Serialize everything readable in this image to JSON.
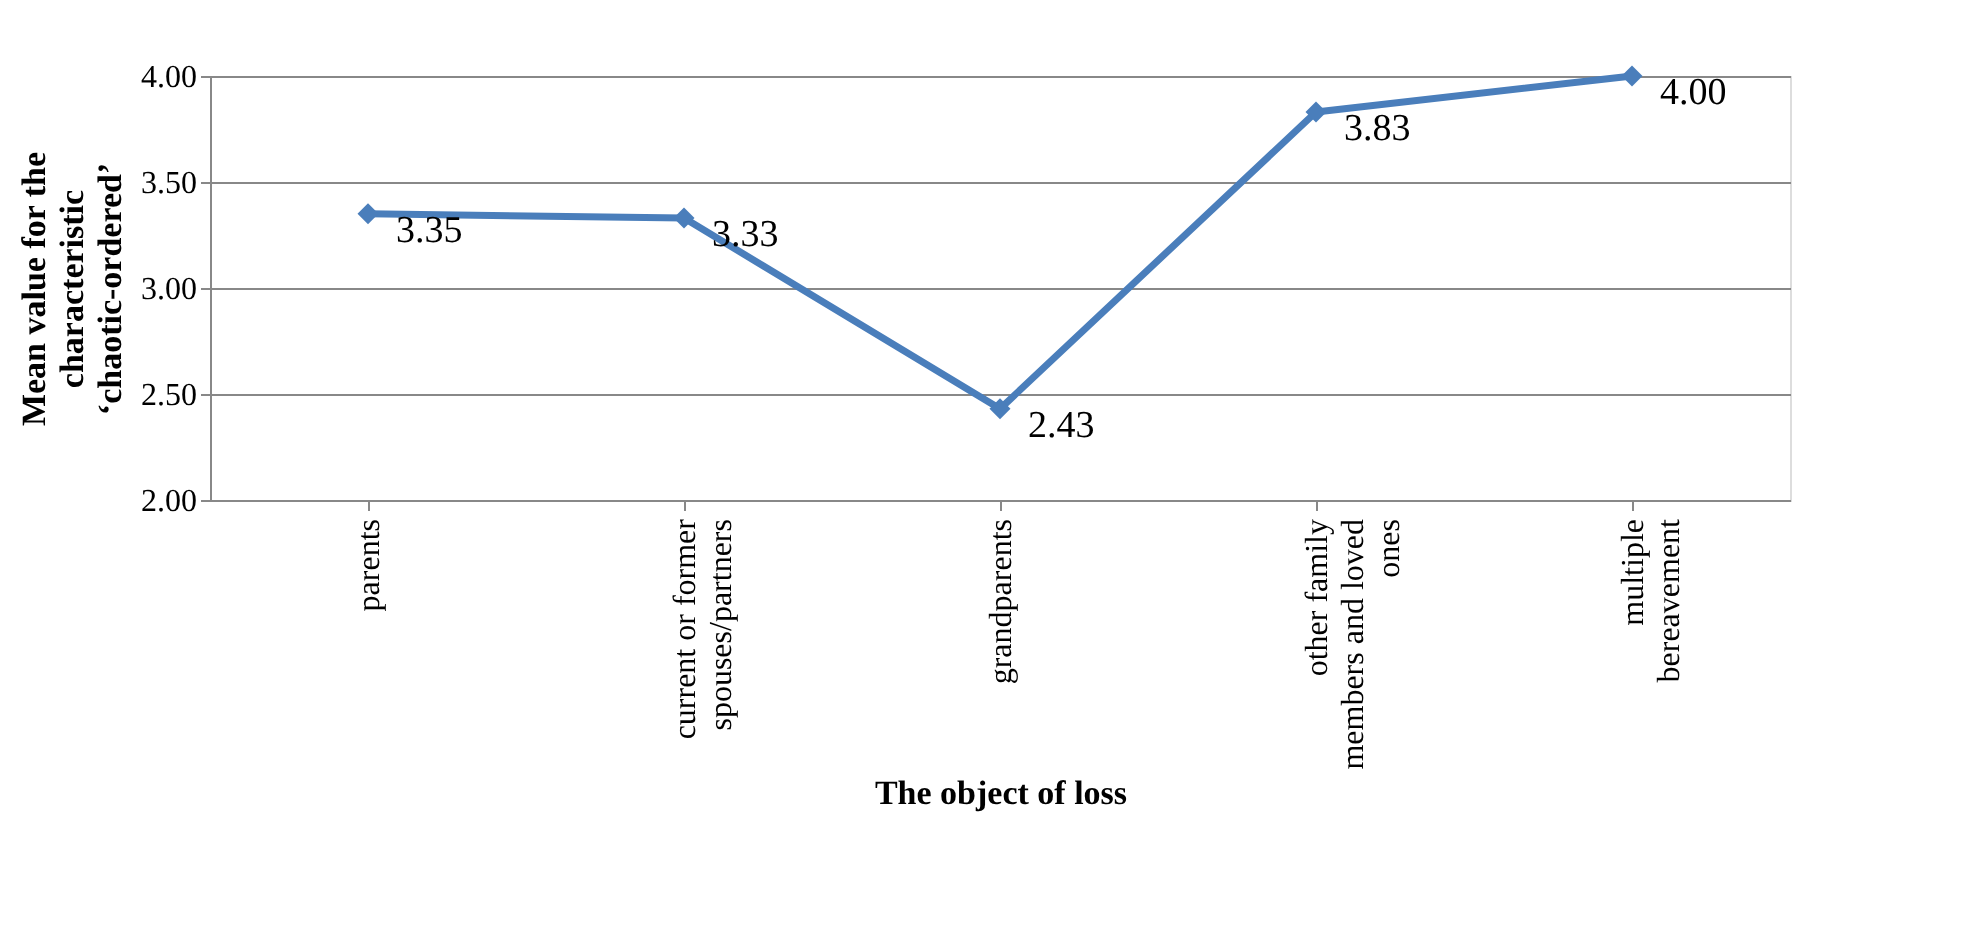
{
  "chart_data": {
    "type": "line",
    "categories": [
      "parents",
      "current or former spouses/partners",
      "grandparents",
      "other family members and loved ones",
      "multiple bereavement"
    ],
    "series": [
      {
        "color": "#4a7ebb",
        "values": [
          3.35,
          3.33,
          2.43,
          3.83,
          4.0
        ]
      }
    ],
    "xlabel": "The object of loss",
    "ylabel": "Mean value for the characteristic ‘chaotic-ordered’",
    "ylim": [
      2,
      4
    ],
    "yticks": [
      {
        "value": 2,
        "label": "2.00"
      },
      {
        "value": 2.5,
        "label": "2.50"
      },
      {
        "value": 3,
        "label": "3.00"
      },
      {
        "value": 3.5,
        "label": "3.50"
      },
      {
        "value": 4,
        "label": "4.00"
      }
    ],
    "value_labels": [
      "3.35",
      "3.33",
      "2.43",
      "3.83",
      "4.00"
    ],
    "grid": "y",
    "marker": "diamond",
    "line_style": "solid"
  }
}
